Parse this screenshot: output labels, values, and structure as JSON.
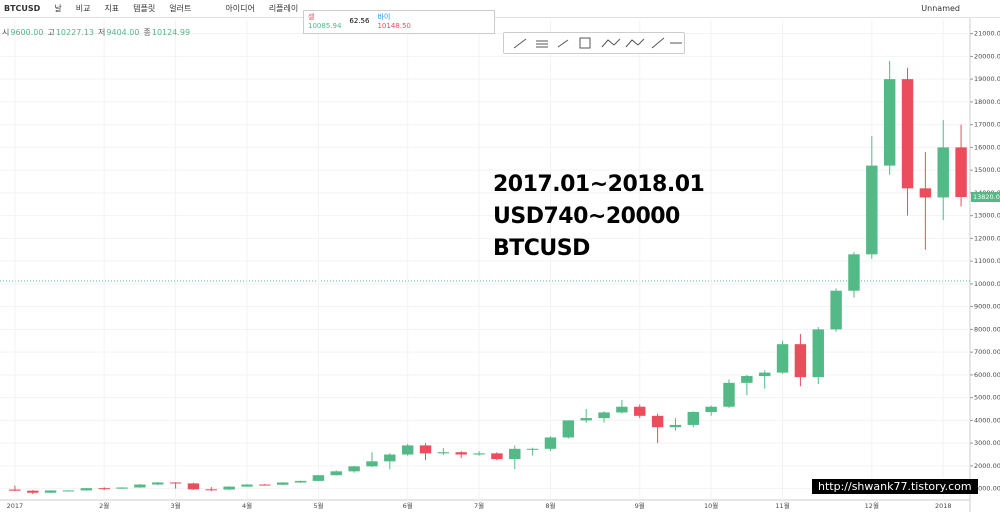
{
  "toolbar": {
    "symbol": "BTCUSD",
    "interval": "날",
    "items": [
      "비교",
      "지표",
      "템플릿",
      "얼러트",
      "아이디어",
      "리플레이"
    ],
    "layout_name": "Unnamed"
  },
  "trade_widget": {
    "sell_label": "셀",
    "sell_price": "10085.94",
    "spread": "62.56",
    "buy_label": "바이",
    "buy_price": "10148.50"
  },
  "legend": [
    {
      "label": "시",
      "value": "9600.00"
    },
    {
      "label": "고",
      "value": "10227.13"
    },
    {
      "label": "저",
      "value": "9404.00"
    },
    {
      "label": "종",
      "value": "10124.99"
    }
  ],
  "overlay_text": [
    "2017.01~2018.01",
    "USD740~20000",
    "BTCUSD"
  ],
  "watermark": "http://shwank77.tistory.com",
  "chart_data": {
    "type": "candlestick",
    "categories": [
      "2017",
      null,
      null,
      null,
      null,
      "2월",
      null,
      null,
      null,
      "3월",
      null,
      null,
      null,
      "4월",
      null,
      null,
      null,
      "5월",
      null,
      null,
      null,
      null,
      "6월",
      null,
      null,
      null,
      "7월",
      null,
      null,
      null,
      "8월",
      null,
      null,
      null,
      null,
      "9월",
      null,
      null,
      null,
      "10월",
      null,
      null,
      null,
      "11월",
      null,
      null,
      null,
      null,
      "12월",
      null,
      null,
      null,
      "2018",
      null
    ],
    "open": [
      960,
      910,
      820,
      920,
      920,
      1020,
      1000,
      1050,
      1180,
      1270,
      1230,
      970,
      960,
      1090,
      1180,
      1170,
      1270,
      1340,
      1590,
      1760,
      1980,
      2200,
      2500,
      2900,
      2550,
      2600,
      2500,
      2550,
      2300,
      2750,
      2750,
      3250,
      4000,
      4100,
      4350,
      4600,
      4200,
      3700,
      3800,
      4370,
      4600,
      5650,
      5950,
      6100,
      7350,
      5900,
      8000,
      9700,
      11300,
      15200,
      19000,
      14200,
      13800,
      16000
    ],
    "high": [
      1130,
      930,
      930,
      930,
      1030,
      1060,
      1060,
      1200,
      1290,
      1280,
      1260,
      1070,
      1100,
      1200,
      1210,
      1280,
      1350,
      1600,
      1800,
      2000,
      2600,
      2550,
      2960,
      3000,
      2780,
      2650,
      2650,
      2600,
      2900,
      2800,
      3300,
      4000,
      4500,
      4400,
      4900,
      4700,
      4300,
      4100,
      4400,
      4650,
      5800,
      6000,
      6200,
      7500,
      7800,
      8100,
      9800,
      11400,
      16500,
      19800,
      19500,
      15800,
      17200,
      17000
    ],
    "low": [
      890,
      760,
      810,
      880,
      910,
      940,
      990,
      1040,
      1150,
      1000,
      940,
      890,
      940,
      1080,
      1140,
      1160,
      1250,
      1330,
      1580,
      1700,
      1950,
      1850,
      2450,
      2250,
      2480,
      2350,
      2450,
      2250,
      1850,
      2450,
      2650,
      3200,
      3900,
      3900,
      4300,
      4100,
      3000,
      3550,
      3700,
      4200,
      4550,
      5100,
      5400,
      6050,
      5500,
      5600,
      7900,
      9400,
      11100,
      14800,
      13000,
      11500,
      12800,
      13400
    ],
    "close": [
      910,
      820,
      920,
      920,
      1020,
      1000,
      1050,
      1180,
      1270,
      1230,
      970,
      960,
      1090,
      1180,
      1170,
      1270,
      1340,
      1590,
      1760,
      1980,
      2200,
      2500,
      2900,
      2550,
      2600,
      2500,
      2550,
      2300,
      2750,
      2750,
      3250,
      4000,
      4100,
      4350,
      4600,
      4200,
      3700,
      3800,
      4370,
      4600,
      5650,
      5950,
      6100,
      7350,
      5900,
      8000,
      9700,
      11300,
      15200,
      19000,
      14200,
      13800,
      16000,
      13820
    ],
    "up_color": "#53b987",
    "down_color": "#eb4d5c",
    "ylim": [
      500,
      21600
    ],
    "yticks": [
      {
        "value": 1000,
        "label": "1000.00"
      },
      {
        "value": 2000,
        "label": "2000.00"
      },
      {
        "value": 3000,
        "label": "3000.00"
      },
      {
        "value": 4000,
        "label": "4000.00"
      },
      {
        "value": 5000,
        "label": "5000.00"
      },
      {
        "value": 6000,
        "label": "6000.00"
      },
      {
        "value": 7000,
        "label": "7000.00"
      },
      {
        "value": 8000,
        "label": "8000.00"
      },
      {
        "value": 9000,
        "label": "9000.00"
      },
      {
        "value": 10000,
        "label": "10000.00"
      },
      {
        "value": 11000,
        "label": "11000.00"
      },
      {
        "value": 12000,
        "label": "12000.00"
      },
      {
        "value": 13000,
        "label": "13000.00"
      },
      {
        "value": 14000,
        "label": "14000.00"
      },
      {
        "value": 15000,
        "label": "15000.00"
      },
      {
        "value": 16000,
        "label": "16000.00"
      },
      {
        "value": 17000,
        "label": "17000.00"
      },
      {
        "value": 18000,
        "label": "18000.00"
      },
      {
        "value": 19000,
        "label": "19000.00"
      },
      {
        "value": 20000,
        "label": "20000.00"
      },
      {
        "value": 21000,
        "label": "21000.00"
      }
    ],
    "last_price": {
      "value": 13820,
      "label": "13820.00"
    },
    "price_line": 10124.99,
    "grid": true
  }
}
